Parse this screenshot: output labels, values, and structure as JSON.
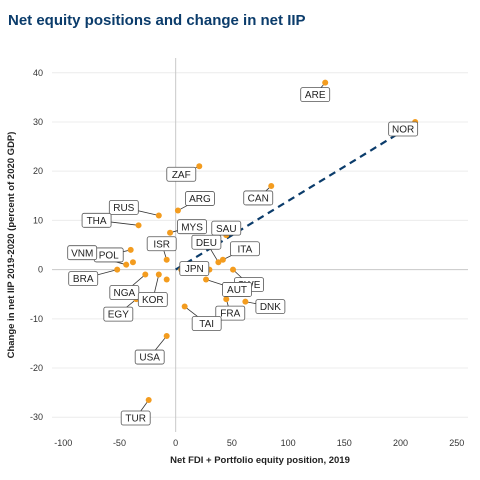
{
  "chart_data": {
    "type": "scatter",
    "title": "Net equity positions and change in net IIP",
    "xlabel": "Net FDI + Portfolio equity position, 2019",
    "ylabel": "Change in net IIP 2019-2020 (percent of 2020 GDP)",
    "xlim": [
      -110,
      260
    ],
    "ylim": [
      -33,
      43
    ],
    "x_ticks": [
      -100,
      -50,
      0,
      50,
      100,
      150,
      200,
      250
    ],
    "y_ticks": [
      -30,
      -20,
      -10,
      0,
      10,
      20,
      30,
      40
    ],
    "x_tick_labels": [
      "-100",
      "-50",
      "0",
      "50",
      "100",
      "150",
      "200",
      "250"
    ],
    "y_tick_labels": [
      "-30",
      "-20",
      "-10",
      "0",
      "10",
      "20",
      "30",
      "40"
    ],
    "grid": "horizontal",
    "trendline": {
      "x": [
        0,
        215
      ],
      "y": [
        0,
        30
      ]
    },
    "colors": {
      "point": "#f39c1f",
      "trend": "#0b3c6b",
      "title": "#0b3c6b"
    },
    "points": [
      {
        "x": 133,
        "y": 38
      },
      {
        "x": 213,
        "y": 30
      },
      {
        "x": 21,
        "y": 21
      },
      {
        "x": 85,
        "y": 17
      },
      {
        "x": 2,
        "y": 12
      },
      {
        "x": -15,
        "y": 11
      },
      {
        "x": -33,
        "y": 9
      },
      {
        "x": -5,
        "y": 7.5
      },
      {
        "x": 45,
        "y": 7
      },
      {
        "x": -22,
        "y": 5
      },
      {
        "x": -40,
        "y": 4
      },
      {
        "x": -8,
        "y": 2
      },
      {
        "x": 38,
        "y": 1.5
      },
      {
        "x": 42,
        "y": 2
      },
      {
        "x": -38,
        "y": 1.5
      },
      {
        "x": -44,
        "y": 1
      },
      {
        "x": -52,
        "y": 0
      },
      {
        "x": 5,
        "y": 0
      },
      {
        "x": 30,
        "y": 0
      },
      {
        "x": 51,
        "y": 0
      },
      {
        "x": -27,
        "y": -1
      },
      {
        "x": -15,
        "y": -1
      },
      {
        "x": -8,
        "y": -2
      },
      {
        "x": 27,
        "y": -2
      },
      {
        "x": -35,
        "y": -6
      },
      {
        "x": 45,
        "y": -6
      },
      {
        "x": 62,
        "y": -6.5
      },
      {
        "x": 8,
        "y": -7.5
      },
      {
        "x": -8,
        "y": -13.5
      },
      {
        "x": -24,
        "y": -26.5
      }
    ],
    "labels": [
      {
        "text": "ARE",
        "x": 133,
        "y": 38
      },
      {
        "text": "NOR",
        "x": 213,
        "y": 30
      },
      {
        "text": "ZAF",
        "x": 21,
        "y": 21
      },
      {
        "text": "CAN",
        "x": 85,
        "y": 17
      },
      {
        "text": "ARG",
        "x": 2,
        "y": 12
      },
      {
        "text": "RUS",
        "x": -15,
        "y": 11
      },
      {
        "text": "THA",
        "x": -33,
        "y": 9
      },
      {
        "text": "MYS",
        "x": -5,
        "y": 7.5
      },
      {
        "text": "SAU",
        "x": 45,
        "y": 7
      },
      {
        "text": "POL",
        "x": -40,
        "y": 4
      },
      {
        "text": "ISR",
        "x": -8,
        "y": 2
      },
      {
        "text": "DEU",
        "x": 38,
        "y": 1.5
      },
      {
        "text": "ITA",
        "x": 42,
        "y": 2
      },
      {
        "text": "VNM",
        "x": -44,
        "y": 1
      },
      {
        "text": "BRA",
        "x": -52,
        "y": 0
      },
      {
        "text": "JPN",
        "x": 5,
        "y": 0
      },
      {
        "text": "SWE",
        "x": 51,
        "y": 0
      },
      {
        "text": "NGA",
        "x": -27,
        "y": -1
      },
      {
        "text": "KOR",
        "x": -15,
        "y": -1
      },
      {
        "text": "AUT",
        "x": 27,
        "y": -2
      },
      {
        "text": "EGY",
        "x": -35,
        "y": -6
      },
      {
        "text": "FRA",
        "x": 45,
        "y": -6
      },
      {
        "text": "DNK",
        "x": 62,
        "y": -6.5
      },
      {
        "text": "TAI",
        "x": 8,
        "y": -7.5
      },
      {
        "text": "USA",
        "x": -8,
        "y": -13.5
      },
      {
        "text": "TUR",
        "x": -24,
        "y": -26.5
      }
    ]
  }
}
